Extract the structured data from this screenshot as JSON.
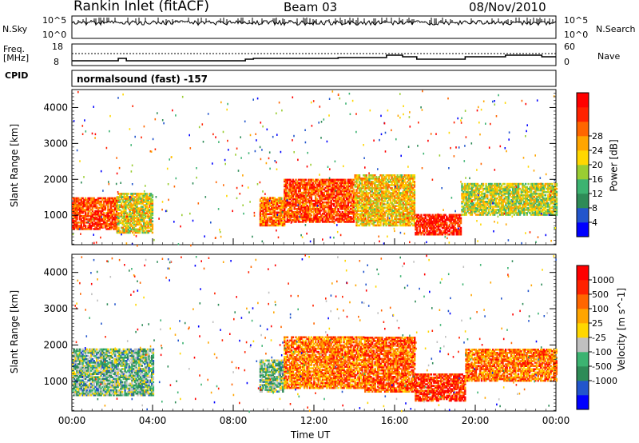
{
  "header": {
    "station": "Rankin Inlet (fitACF)",
    "beam": "Beam 03",
    "date": "08/Nov/2010"
  },
  "strips": {
    "nsky_label": "N.Sky",
    "nsearch_label": "N.Search",
    "nsky_ticks": [
      "10^5",
      "10^0"
    ],
    "nsearch_ticks": [
      "10^5",
      "10^0"
    ],
    "freq_label_line1": "Freq.",
    "freq_label_line2": "[MHz]",
    "freq_ticks": [
      "18",
      "8"
    ],
    "nave_label": "Nave",
    "nave_ticks": [
      "60",
      "0"
    ],
    "cpid_label": "CPID",
    "cpid_text": "normalsound (fast) -157"
  },
  "colors": {
    "power_scale": [
      "#0000ff",
      "#2255cc",
      "#2e8b57",
      "#3cb371",
      "#9acd32",
      "#ffd700",
      "#ffa500",
      "#ff6600",
      "#ff2200",
      "#ff0000"
    ],
    "velocity_scale": [
      "#0000ff",
      "#2255cc",
      "#2e8b57",
      "#3cb371",
      "#c0c0c0",
      "#ffd700",
      "#ffa500",
      "#ff6600",
      "#ff2200",
      "#ff0000"
    ]
  },
  "chart_data": [
    {
      "type": "heatmap",
      "title": "",
      "xlabel": "",
      "ylabel": "Slant Range [km]",
      "xlim": [
        "00:00",
        "24:00"
      ],
      "ylim": [
        180,
        4500
      ],
      "x_ticks": [
        "00:00",
        "04:00",
        "08:00",
        "12:00",
        "16:00",
        "20:00",
        "00:00"
      ],
      "y_ticks": [
        1000,
        2000,
        3000,
        4000
      ],
      "colorbar": {
        "label": "Power [dB]",
        "ticks": [
          4,
          8,
          12,
          16,
          20,
          24,
          28
        ],
        "range": [
          0,
          30
        ]
      },
      "regions": [
        {
          "t_start": 0.0,
          "t_end": 2.2,
          "r_low": 600,
          "r_high": 1500,
          "level": 0.85
        },
        {
          "t_start": 2.2,
          "t_end": 4.0,
          "r_low": 500,
          "r_high": 1600,
          "level": 0.55
        },
        {
          "t_start": 9.3,
          "t_end": 10.5,
          "r_low": 700,
          "r_high": 1500,
          "level": 0.75
        },
        {
          "t_start": 10.5,
          "t_end": 14.0,
          "r_low": 800,
          "r_high": 2000,
          "level": 0.85
        },
        {
          "t_start": 14.0,
          "t_end": 17.0,
          "r_low": 700,
          "r_high": 2100,
          "level": 0.6
        },
        {
          "t_start": 17.0,
          "t_end": 19.3,
          "r_low": 450,
          "r_high": 1000,
          "level": 0.95
        },
        {
          "t_start": 19.3,
          "t_end": 24.0,
          "r_low": 1000,
          "r_high": 1900,
          "level": 0.5
        }
      ]
    },
    {
      "type": "heatmap",
      "title": "",
      "xlabel": "Time UT",
      "ylabel": "Slant Range [km]",
      "xlim": [
        "00:00",
        "24:00"
      ],
      "ylim": [
        180,
        4500
      ],
      "x_ticks": [
        "00:00",
        "04:00",
        "08:00",
        "12:00",
        "16:00",
        "20:00",
        "00:00"
      ],
      "y_ticks": [
        1000,
        2000,
        3000,
        4000
      ],
      "colorbar": {
        "label": "Velocity [m s^-1]",
        "ticks": [
          1000,
          500,
          100,
          25,
          -25,
          -100,
          -500,
          -1000
        ]
      },
      "regions": [
        {
          "t_start": 0.0,
          "t_end": 4.0,
          "r_low": 600,
          "r_high": 1900,
          "level": 0.35
        },
        {
          "t_start": 9.3,
          "t_end": 10.5,
          "r_low": 700,
          "r_high": 1600,
          "level": 0.35
        },
        {
          "t_start": 10.5,
          "t_end": 14.5,
          "r_low": 800,
          "r_high": 2200,
          "level": 0.75
        },
        {
          "t_start": 14.5,
          "t_end": 17.0,
          "r_low": 700,
          "r_high": 2200,
          "level": 0.8
        },
        {
          "t_start": 17.0,
          "t_end": 19.5,
          "r_low": 450,
          "r_high": 1200,
          "level": 0.9
        },
        {
          "t_start": 19.5,
          "t_end": 24.0,
          "r_low": 1000,
          "r_high": 1900,
          "level": 0.75
        }
      ]
    }
  ]
}
